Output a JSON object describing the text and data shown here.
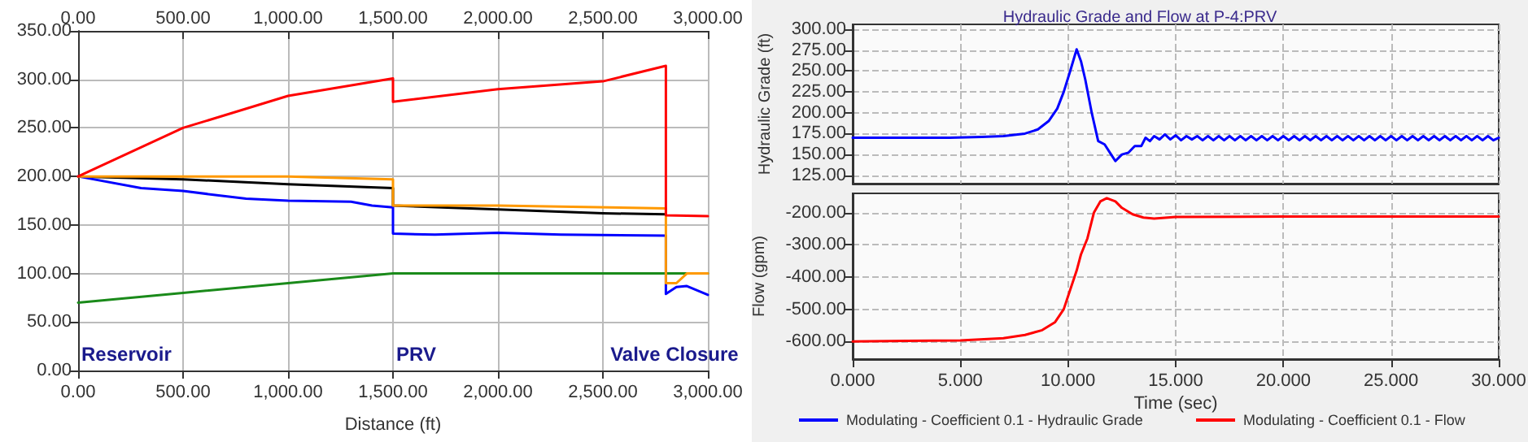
{
  "chart_data": [
    {
      "type": "line",
      "xlabel": "Distance (ft)",
      "grid": true,
      "legend": false,
      "marker": "none",
      "line_style": "solid",
      "xlim": [
        0,
        3000
      ],
      "xticks": [
        {
          "value": 0,
          "label": "0.00"
        },
        {
          "value": 500,
          "label": "500.00"
        },
        {
          "value": 1000,
          "label": "1,000.00"
        },
        {
          "value": 1500,
          "label": "1,500.00"
        },
        {
          "value": 2000,
          "label": "2,000.00"
        },
        {
          "value": 2500,
          "label": "2,500.00"
        },
        {
          "value": 3000,
          "label": "3,000.00"
        }
      ],
      "x2lim": [
        0,
        3000
      ],
      "x2ticks": [
        {
          "value": 0,
          "label": "0.00"
        },
        {
          "value": 500,
          "label": "500.00"
        },
        {
          "value": 1000,
          "label": "1,000.00"
        },
        {
          "value": 1500,
          "label": "1,500.00"
        },
        {
          "value": 2000,
          "label": "2,000.00"
        },
        {
          "value": 2500,
          "label": "2,500.00"
        },
        {
          "value": 3000,
          "label": "3,000.00"
        }
      ],
      "ylim": [
        0,
        350
      ],
      "yticks": [
        {
          "value": 0,
          "label": "0.00"
        },
        {
          "value": 50,
          "label": "50.00"
        },
        {
          "value": 100,
          "label": "100.00"
        },
        {
          "value": 150,
          "label": "150.00"
        },
        {
          "value": 200,
          "label": "200.00"
        },
        {
          "value": 250,
          "label": "250.00"
        },
        {
          "value": 300,
          "label": "300.00"
        },
        {
          "value": 350,
          "label": "350.00"
        }
      ],
      "annotations": [
        "Reservoir",
        "PRV",
        "Valve Closure"
      ],
      "series": [
        {
          "color": "#1a8a1a",
          "x": [
            0,
            500,
            1000,
            1500,
            3000
          ],
          "values": [
            70,
            80,
            90,
            100,
            100
          ]
        },
        {
          "color": "#000000",
          "x": [
            0,
            500,
            1000,
            1500,
            1500,
            2000,
            2500,
            2800
          ],
          "values": [
            200,
            197,
            192,
            188,
            170,
            166,
            162,
            161
          ]
        },
        {
          "color": "#0000ff",
          "x": [
            0,
            300,
            500,
            800,
            1000,
            1300,
            1400,
            1500,
            1500,
            1700,
            2000,
            2300,
            2800,
            2800,
            2850,
            2900,
            3000
          ],
          "values": [
            200,
            188,
            185,
            177,
            175,
            174,
            170,
            168,
            141,
            140,
            142,
            140,
            139,
            79,
            86,
            87,
            78
          ]
        },
        {
          "color": "#ff9900",
          "x": [
            0,
            1000,
            1500,
            1500,
            2000,
            2800,
            2800,
            2850,
            2900,
            3000
          ],
          "values": [
            200,
            200,
            197,
            170,
            170,
            167,
            90,
            90,
            100,
            100
          ]
        },
        {
          "color": "#ff0000",
          "x": [
            0,
            500,
            1000,
            1500,
            1500,
            2000,
            2500,
            2800,
            2800,
            3000
          ],
          "values": [
            200,
            250,
            283,
            301,
            277,
            290,
            298,
            314,
            160,
            159
          ]
        }
      ]
    },
    {
      "type": "line",
      "title": "Hydraulic Grade and Flow at P-4:PRV",
      "ylabel": "Hydraulic Grade (ft)",
      "grid": true,
      "legend": "bottom left",
      "marker": "none",
      "line_style": "solid",
      "tick_labels": "y",
      "xlim": [
        0,
        30
      ],
      "xticks": [
        0,
        5,
        10,
        15,
        20,
        25,
        30
      ],
      "ylim": [
        115,
        306
      ],
      "yticks": [
        {
          "value": 125,
          "label": "125.00"
        },
        {
          "value": 150,
          "label": "150.00"
        },
        {
          "value": 175,
          "label": "175.00"
        },
        {
          "value": 200,
          "label": "200.00"
        },
        {
          "value": 225,
          "label": "225.00"
        },
        {
          "value": 250,
          "label": "250.00"
        },
        {
          "value": 275,
          "label": "275.00"
        },
        {
          "value": 300,
          "label": "300.00"
        }
      ],
      "series": [
        {
          "name": "Modulating - Coefficient 0.1 - Hydraulic Grade",
          "color": "#0000ff",
          "x": [
            0,
            4.5,
            6,
            7,
            8,
            8.6,
            9.1,
            9.5,
            9.8,
            10.1,
            10.4,
            10.6,
            10.8,
            11.1,
            11.4,
            11.7,
            12,
            12.2,
            12.5,
            12.8,
            13.1,
            13.4,
            13.6,
            13.8,
            14,
            14.25,
            14.5,
            14.75,
            15,
            15.25,
            15.5,
            15.75,
            16,
            16.25,
            16.5,
            16.75,
            17,
            17.25,
            17.5,
            17.75,
            18,
            18.25,
            18.5,
            18.75,
            19,
            19.25,
            19.5,
            19.75,
            20,
            20.25,
            20.5,
            20.75,
            21,
            21.25,
            21.5,
            21.75,
            22,
            22.25,
            22.5,
            22.75,
            23,
            23.25,
            23.5,
            23.75,
            24,
            24.25,
            24.5,
            24.75,
            25,
            25.25,
            25.5,
            25.75,
            26,
            26.25,
            26.5,
            26.75,
            27,
            27.25,
            27.5,
            27.75,
            28,
            28.25,
            28.5,
            28.75,
            29,
            29.25,
            29.5,
            29.75,
            30
          ],
          "values": [
            170,
            170,
            171,
            172,
            175,
            180,
            190,
            205,
            225,
            250,
            276,
            262,
            240,
            200,
            166,
            162,
            150,
            142,
            150,
            152,
            160,
            160,
            170,
            166,
            172,
            168,
            174,
            168,
            173,
            167,
            172,
            168,
            172,
            167,
            172,
            167,
            172,
            167,
            172,
            167,
            172,
            167,
            172,
            167,
            172,
            167,
            172,
            167,
            172,
            167,
            172,
            167,
            172,
            167,
            172,
            167,
            172,
            167,
            172,
            167,
            172,
            167,
            172,
            167,
            172,
            167,
            172,
            167,
            172,
            167,
            172,
            167,
            172,
            167,
            172,
            167,
            172,
            167,
            172,
            167,
            172,
            167,
            172,
            167,
            172,
            167,
            172,
            167,
            170
          ]
        }
      ]
    },
    {
      "type": "line",
      "xlabel": "Time (sec)",
      "ylabel": "Flow (gpm)",
      "grid": true,
      "legend": "bottom right",
      "marker": "none",
      "line_style": "solid",
      "xlim": [
        0,
        30
      ],
      "xticks": [
        {
          "value": 0,
          "label": "0.000"
        },
        {
          "value": 5,
          "label": "5.000"
        },
        {
          "value": 10,
          "label": "10.000"
        },
        {
          "value": 15,
          "label": "15.000"
        },
        {
          "value": 20,
          "label": "20.000"
        },
        {
          "value": 25,
          "label": "25.000"
        },
        {
          "value": 30,
          "label": "30.000"
        }
      ],
      "ylim": [
        -655,
        -140
      ],
      "yticks": [
        {
          "value": -600,
          "label": "-600.00"
        },
        {
          "value": -500,
          "label": "-500.00"
        },
        {
          "value": -400,
          "label": "-400.00"
        },
        {
          "value": -300,
          "label": "-300.00"
        },
        {
          "value": -200,
          "label": "-200.00"
        }
      ],
      "series": [
        {
          "name": "Modulating - Coefficient 0.1 - Flow",
          "color": "#ff0000",
          "x": [
            0,
            2.5,
            5,
            7,
            8,
            8.8,
            9.4,
            9.8,
            10.1,
            10.4,
            10.6,
            10.9,
            11.2,
            11.5,
            11.8,
            12.2,
            12.5,
            13,
            13.5,
            14,
            15,
            20,
            30
          ],
          "values": [
            -600,
            -598,
            -597,
            -590,
            -580,
            -565,
            -540,
            -500,
            -440,
            -380,
            -330,
            -280,
            -200,
            -165,
            -155,
            -165,
            -185,
            -205,
            -215,
            -218,
            -213,
            -212,
            -212
          ]
        }
      ]
    }
  ]
}
